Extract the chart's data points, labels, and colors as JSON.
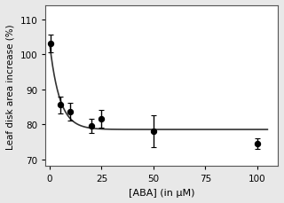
{
  "x_data": [
    0.5,
    5,
    10,
    20,
    25,
    50,
    100
  ],
  "y_data": [
    103,
    85.5,
    83.5,
    79.5,
    81.5,
    78,
    74.5
  ],
  "y_err": [
    2.5,
    2.5,
    2.5,
    2.0,
    2.5,
    4.5,
    1.5
  ],
  "fit_A": 24.5,
  "fit_k": 0.208,
  "fit_C": 78.5,
  "x_label": "[ABA] (in μM)",
  "y_label": "Leaf disk area increase (%)",
  "xlim": [
    -2,
    110
  ],
  "ylim": [
    68,
    114
  ],
  "xticks": [
    0,
    25,
    50,
    75,
    100
  ],
  "yticks": [
    70,
    80,
    90,
    100,
    110
  ],
  "point_color": "#000000",
  "line_color": "#333333",
  "bg_color": "#ffffff",
  "border_color": "#aaaaaa"
}
